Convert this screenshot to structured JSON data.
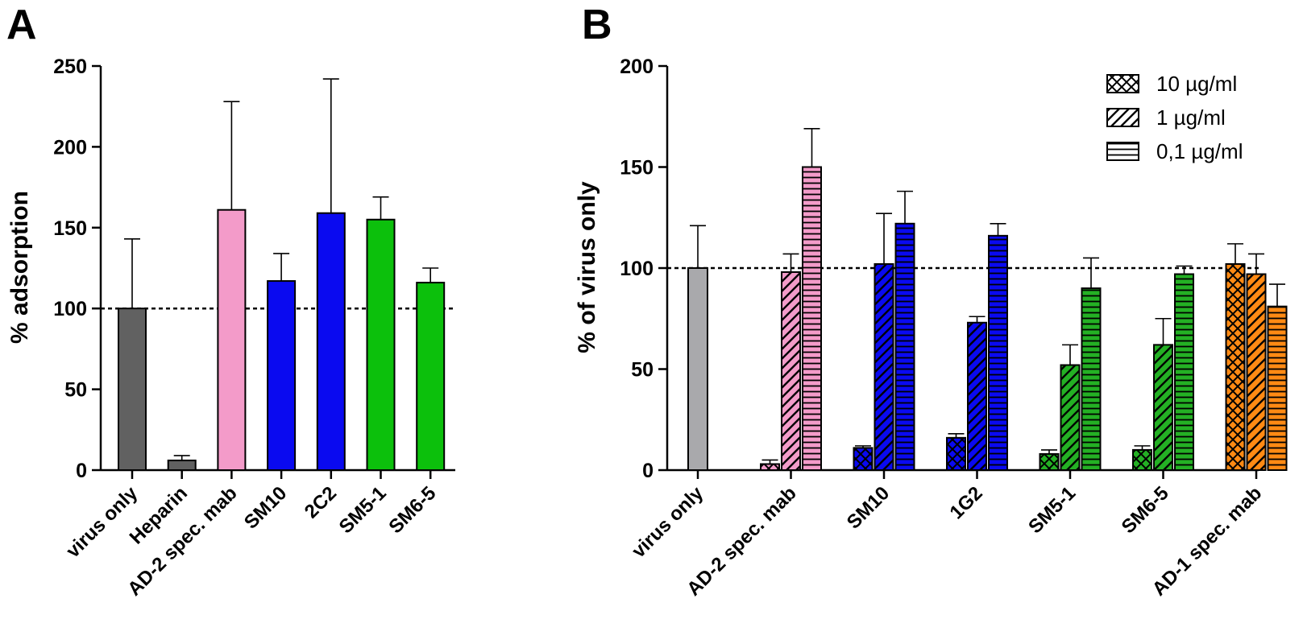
{
  "chart_data": [
    {
      "type": "bar",
      "panel_label": "A",
      "ylabel": "% adsorption",
      "ylim": [
        0,
        250
      ],
      "yticks": [
        0,
        50,
        100,
        150,
        200,
        250
      ],
      "reference_line": 100,
      "grid": false,
      "categories": [
        "virus only",
        "Heparin",
        "AD-2 spec. mab",
        "SM10",
        "2C2",
        "SM5-1",
        "SM6-5"
      ],
      "values": [
        100,
        6,
        161,
        117,
        159,
        155,
        116
      ],
      "error_upper": [
        143,
        9,
        228,
        134,
        242,
        169,
        125
      ],
      "colors": [
        "#616161",
        "#616161",
        "#f39bc9",
        "#0a0af0",
        "#0a0af0",
        "#0cc00c",
        "#0cc00c"
      ]
    },
    {
      "type": "bar",
      "panel_label": "B",
      "ylabel": "% of virus only",
      "ylim": [
        0,
        200
      ],
      "yticks": [
        0,
        50,
        100,
        150,
        200
      ],
      "reference_line": 100,
      "grid": false,
      "legend_position": "top-right",
      "legend": [
        {
          "label": "10 µg/ml",
          "pattern": "crosshatch"
        },
        {
          "label": "1 µg/ml",
          "pattern": "diagonal"
        },
        {
          "label": "0,1 µg/ml",
          "pattern": "horizontal"
        }
      ],
      "categories": [
        "virus only",
        "AD-2 spec. mab",
        "SM10",
        "1G2",
        "SM5-1",
        "SM6-5",
        "AD-1 spec. mab"
      ],
      "colors": [
        "#a9a9ac",
        "#f39bc9",
        "#0a0af0",
        "#0a0af0",
        "#24b024",
        "#24b024",
        "#ff8a14"
      ],
      "groups": [
        {
          "category": "virus only",
          "bars": [
            {
              "pattern": "solid",
              "value": 100,
              "error_upper": 121
            }
          ]
        },
        {
          "category": "AD-2 spec. mab",
          "bars": [
            {
              "pattern": "crosshatch",
              "value": 3,
              "error_upper": 5
            },
            {
              "pattern": "diagonal",
              "value": 98,
              "error_upper": 107
            },
            {
              "pattern": "horizontal",
              "value": 150,
              "error_upper": 169
            }
          ]
        },
        {
          "category": "SM10",
          "bars": [
            {
              "pattern": "crosshatch",
              "value": 11,
              "error_upper": 12
            },
            {
              "pattern": "diagonal",
              "value": 102,
              "error_upper": 127
            },
            {
              "pattern": "horizontal",
              "value": 122,
              "error_upper": 138
            }
          ]
        },
        {
          "category": "1G2",
          "bars": [
            {
              "pattern": "crosshatch",
              "value": 16,
              "error_upper": 18
            },
            {
              "pattern": "diagonal",
              "value": 73,
              "error_upper": 76
            },
            {
              "pattern": "horizontal",
              "value": 116,
              "error_upper": 122
            }
          ]
        },
        {
          "category": "SM5-1",
          "bars": [
            {
              "pattern": "crosshatch",
              "value": 8,
              "error_upper": 10
            },
            {
              "pattern": "diagonal",
              "value": 52,
              "error_upper": 62
            },
            {
              "pattern": "horizontal",
              "value": 90,
              "error_upper": 105
            }
          ]
        },
        {
          "category": "SM6-5",
          "bars": [
            {
              "pattern": "crosshatch",
              "value": 10,
              "error_upper": 12
            },
            {
              "pattern": "diagonal",
              "value": 62,
              "error_upper": 75
            },
            {
              "pattern": "horizontal",
              "value": 97,
              "error_upper": 101
            }
          ]
        },
        {
          "category": "AD-1 spec. mab",
          "bars": [
            {
              "pattern": "crosshatch",
              "value": 102,
              "error_upper": 112
            },
            {
              "pattern": "diagonal",
              "value": 97,
              "error_upper": 107
            },
            {
              "pattern": "horizontal",
              "value": 81,
              "error_upper": 92
            }
          ]
        }
      ]
    }
  ]
}
